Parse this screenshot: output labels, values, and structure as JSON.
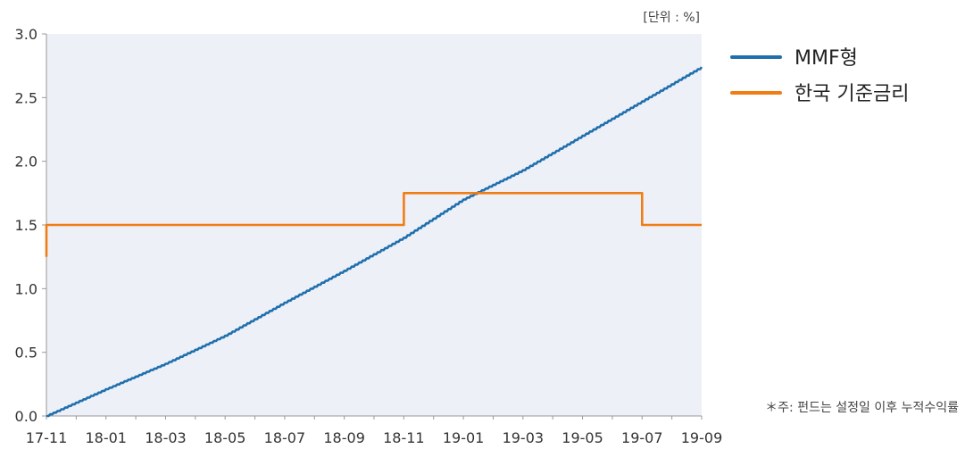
{
  "chart_data": {
    "type": "line",
    "unit_label": "[단위 : %]",
    "note": "＊주: 펀드는 설정일 이후 누적수익률",
    "ylim": [
      0,
      3.0
    ],
    "yticks": [
      "0.0",
      "0.5",
      "1.0",
      "1.5",
      "2.0",
      "2.5",
      "3.0"
    ],
    "xticks": [
      "17-11",
      "18-01",
      "18-03",
      "18-05",
      "18-07",
      "18-09",
      "18-11",
      "19-01",
      "19-03",
      "19-05",
      "19-07",
      "19-09"
    ],
    "x_range": [
      "17-11",
      "19-09"
    ],
    "legend_position": "right",
    "grid": false,
    "series": [
      {
        "name": "MMF형",
        "color": "#1f6fad",
        "points": [
          [
            "17-11",
            0.0
          ],
          [
            "18-01",
            0.21
          ],
          [
            "18-03",
            0.41
          ],
          [
            "18-05",
            0.63
          ],
          [
            "18-07",
            0.89
          ],
          [
            "18-09",
            1.14
          ],
          [
            "18-11",
            1.4
          ],
          [
            "19-01",
            1.7
          ],
          [
            "19-03",
            1.93
          ],
          [
            "19-05",
            2.2
          ],
          [
            "19-07",
            2.47
          ],
          [
            "19-09",
            2.74
          ]
        ]
      },
      {
        "name": "한국 기준금리",
        "color": "#f07d14",
        "steps": [
          [
            "17-11",
            1.25
          ],
          [
            "17-11",
            1.5
          ],
          [
            "18-11",
            1.5
          ],
          [
            "18-11",
            1.75
          ],
          [
            "19-07",
            1.75
          ],
          [
            "19-07",
            1.5
          ],
          [
            "19-09",
            1.5
          ]
        ]
      }
    ]
  }
}
